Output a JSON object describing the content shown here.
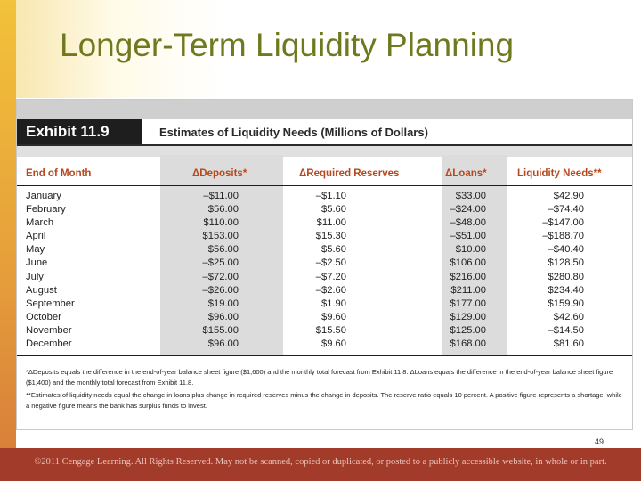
{
  "slide": {
    "title": "Longer-Term Liquidity Planning",
    "page_number": "49",
    "footer": "©2011 Cengage Learning. All Rights Reserved. May not be scanned, copied or duplicated, or posted to a publicly accessible website, in whole or in part."
  },
  "exhibit": {
    "label": "Exhibit 11.9",
    "caption": "Estimates of Liquidity Needs (Millions of Dollars)",
    "headers": [
      "End of Month",
      "ΔDeposits*",
      "ΔRequired Reserves",
      "ΔLoans*",
      "Liquidity Needs**"
    ],
    "rows": [
      {
        "month": "January",
        "deposits": "–$11.00",
        "reserves": "–$1.10",
        "loans": "$33.00",
        "needs": "$42.90"
      },
      {
        "month": "February",
        "deposits": "$56.00",
        "reserves": "$5.60",
        "loans": "–$24.00",
        "needs": "–$74.40"
      },
      {
        "month": "March",
        "deposits": "$110.00",
        "reserves": "$11.00",
        "loans": "–$48.00",
        "needs": "–$147.00"
      },
      {
        "month": "April",
        "deposits": "$153.00",
        "reserves": "$15.30",
        "loans": "–$51.00",
        "needs": "–$188.70"
      },
      {
        "month": "May",
        "deposits": "$56.00",
        "reserves": "$5.60",
        "loans": "$10.00",
        "needs": "–$40.40"
      },
      {
        "month": "June",
        "deposits": "–$25.00",
        "reserves": "–$2.50",
        "loans": "$106.00",
        "needs": "$128.50"
      },
      {
        "month": "July",
        "deposits": "–$72.00",
        "reserves": "–$7.20",
        "loans": "$216.00",
        "needs": "$280.80"
      },
      {
        "month": "August",
        "deposits": "–$26.00",
        "reserves": "–$2.60",
        "loans": "$211.00",
        "needs": "$234.40"
      },
      {
        "month": "September",
        "deposits": "$19.00",
        "reserves": "$1.90",
        "loans": "$177.00",
        "needs": "$159.90"
      },
      {
        "month": "October",
        "deposits": "$96.00",
        "reserves": "$9.60",
        "loans": "$129.00",
        "needs": "$42.60"
      },
      {
        "month": "November",
        "deposits": "$155.00",
        "reserves": "$15.50",
        "loans": "$125.00",
        "needs": "–$14.50"
      },
      {
        "month": "December",
        "deposits": "$96.00",
        "reserves": "$9.60",
        "loans": "$168.00",
        "needs": "$81.60"
      }
    ],
    "notes": [
      "*ΔDeposits equals the difference in the end-of-year balance sheet figure ($1,600) and the monthly total forecast from Exhibit 11.8. ΔLoans equals the difference in the end-of-year balance sheet figure ($1,400) and the monthly total forecast from Exhibit 11.8.",
      "**Estimates of liquidity needs equal the change in loans plus change in required reserves minus the change in deposits. The reserve ratio equals 10 percent. A positive figure represents a shortage, while a negative figure means the bank has surplus funds to invest."
    ]
  }
}
